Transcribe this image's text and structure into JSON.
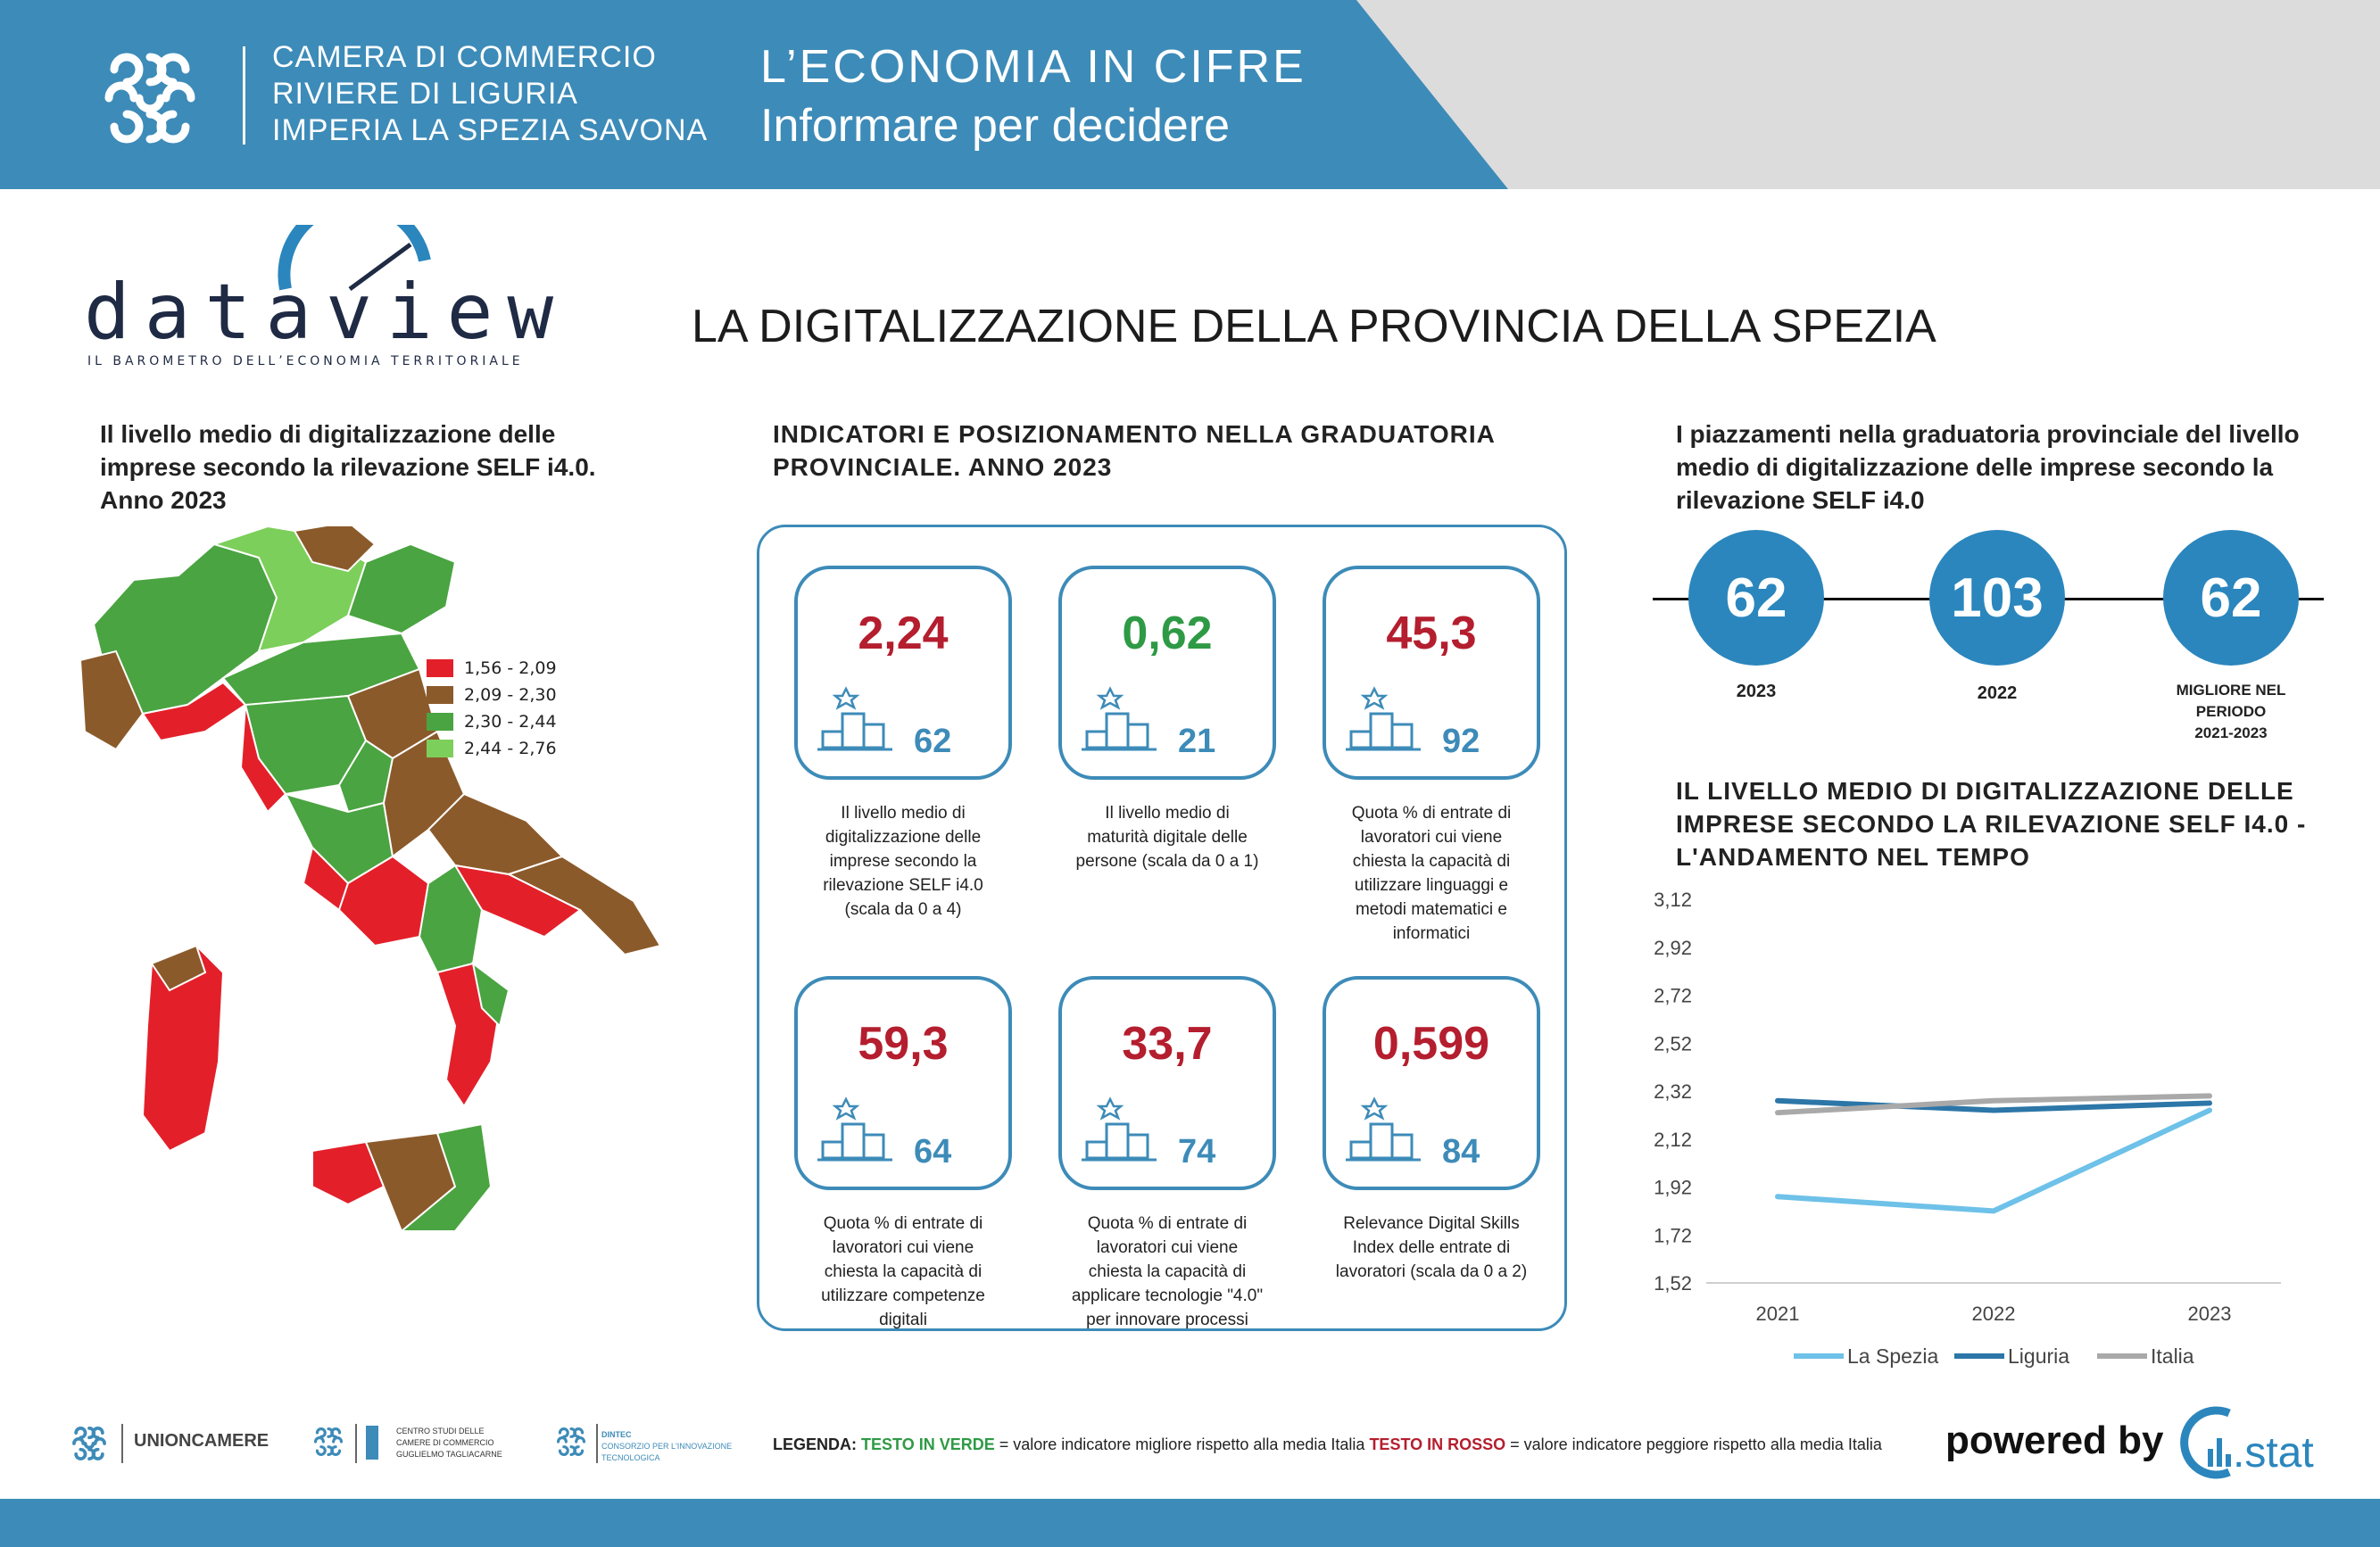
{
  "header": {
    "org_lines": [
      "CAMERA DI COMMERCIO",
      "RIVIERE DI LIGURIA",
      "IMPERIA LA SPEZIA SAVONA"
    ],
    "title_line1": "L’ECONOMIA IN CIFRE",
    "title_line2": "Informare per decidere"
  },
  "brand": {
    "wordmark": "dataview",
    "tagline": "IL BAROMETRO DELL’ECONOMIA TERRITORIALE"
  },
  "main_title": "LA DIGITALIZZAZIONE DELLA PROVINCIA DELLA SPEZIA",
  "map_section": {
    "title_lines": [
      "Il livello medio di digitalizzazione delle",
      "imprese secondo la rilevazione SELF i4.0.",
      "Anno 2023"
    ],
    "legend": [
      {
        "label": "1,56 - 2,09",
        "color": "#e3202a"
      },
      {
        "label": "2,09 - 2,30",
        "color": "#8b5a2b"
      },
      {
        "label": "2,30 - 2,44",
        "color": "#4aa441"
      },
      {
        "label": "2,44 - 2,76",
        "color": "#7ccf5a"
      }
    ]
  },
  "kpi_section": {
    "title_lines": [
      "INDICATORI E POSIZIONAMENTO NELLA GRADUATORIA",
      "PROVINCIALE. ANNO 2023"
    ],
    "cards": [
      {
        "value": "2,24",
        "rank": "62",
        "tone": "red",
        "desc": [
          "Il livello medio di",
          "digitalizzazione delle",
          "imprese secondo la",
          "rilevazione SELF i4.0",
          "(scala da 0 a 4)"
        ]
      },
      {
        "value": "0,62",
        "rank": "21",
        "tone": "green",
        "desc": [
          "Il livello medio di",
          "maturità digitale delle",
          "persone (scala da 0 a 1)"
        ]
      },
      {
        "value": "45,3",
        "rank": "92",
        "tone": "red",
        "desc": [
          "Quota % di entrate di",
          "lavoratori cui viene",
          "chiesta la capacità di",
          "utilizzare linguaggi e",
          "metodi matematici e",
          "informatici"
        ]
      },
      {
        "value": "59,3",
        "rank": "64",
        "tone": "red",
        "desc": [
          "Quota % di entrate di",
          "lavoratori cui viene",
          "chiesta la capacità di",
          "utilizzare competenze",
          "digitali"
        ]
      },
      {
        "value": "33,7",
        "rank": "74",
        "tone": "red",
        "desc": [
          "Quota % di entrate di",
          "lavoratori cui viene",
          "chiesta la capacità di",
          "applicare tecnologie \"4.0\"",
          "per innovare processi"
        ]
      },
      {
        "value": "0,599",
        "rank": "84",
        "tone": "red",
        "desc": [
          "Relevance Digital Skills",
          "Index delle entrate di",
          "lavoratori (scala da 0 a 2)"
        ]
      }
    ]
  },
  "ranking_section": {
    "title_lines": [
      "I piazzamenti nella graduatoria provinciale del livello",
      "medio di digitalizzazione delle imprese secondo la",
      "rilevazione SELF i4.0"
    ],
    "items": [
      {
        "value": "62",
        "label_lines": [
          "2023"
        ]
      },
      {
        "value": "103",
        "label_lines": [
          "2022"
        ]
      },
      {
        "value": "62",
        "label_lines": [
          "MIGLIORE NEL",
          "PERIODO",
          "2021-2023"
        ]
      }
    ]
  },
  "trend_section": {
    "title_lines": [
      "IL LIVELLO MEDIO DI DIGITALIZZAZIONE DELLE",
      "IMPRESE SECONDO LA RILEVAZIONE SELF I4.0 -",
      "L'ANDAMENTO NEL TEMPO"
    ]
  },
  "chart_data": {
    "type": "line",
    "title": "IL LIVELLO MEDIO DI DIGITALIZZAZIONE DELLE IMPRESE SECONDO LA RILEVAZIONE SELF I4.0 - L'ANDAMENTO NEL TEMPO",
    "x": [
      "2021",
      "2022",
      "2023"
    ],
    "yticks": [
      "3,12",
      "2,92",
      "2,72",
      "2,52",
      "2,32",
      "2,12",
      "1,92",
      "1,72",
      "1,52"
    ],
    "ylim": [
      1.52,
      3.12
    ],
    "grid": false,
    "legend_position": "bottom",
    "series": [
      {
        "name": "La Spezia",
        "color": "#6ec1e8",
        "values": [
          1.88,
          1.82,
          2.24
        ]
      },
      {
        "name": "Liguria",
        "color": "#2c76a8",
        "values": [
          2.28,
          2.24,
          2.27
        ]
      },
      {
        "name": "Italia",
        "color": "#a9a9a9",
        "values": [
          2.23,
          2.28,
          2.3
        ]
      }
    ]
  },
  "footer": {
    "unioncamere": "UNIONCAMERE",
    "tagliacarne_lines": [
      "CENTRO STUDI DELLE",
      "CAMERE DI COMMERCIO",
      "GUGLIELMO TAGLIACARNE"
    ],
    "dintec_lines": [
      "DINTEC",
      "CONSORZIO PER L'INNOVAZIONE",
      "TECNOLOGICA"
    ],
    "legend_prefix": "LEGENDA:",
    "legend_green": "TESTO IN VERDE",
    "legend_mid": " = valore indicatore migliore rispetto alla media Italia ",
    "legend_red": "TESTO IN ROSSO",
    "legend_suffix": " = valore indicatore peggiore rispetto alla media Italia",
    "powered_by": "powered by",
    "cstat": ".stat"
  },
  "colors": {
    "brand_blue": "#3d8bb8",
    "circle_blue": "#2b86bd",
    "better": "#2f9a45",
    "worse": "#b41e2e"
  }
}
